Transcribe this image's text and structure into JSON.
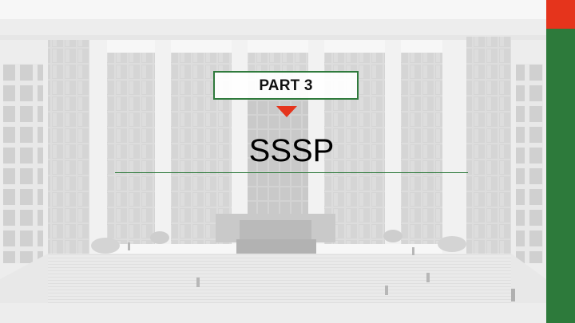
{
  "slide": {
    "part_label": "PART 3",
    "title": "SSSP"
  },
  "colors": {
    "accent_green": "#2f7a3c",
    "side_red": "#e5341c",
    "side_green": "#2d7a3b",
    "pointer_red": "#e5341c"
  },
  "icons": {
    "pointer": "down-triangle-icon"
  }
}
